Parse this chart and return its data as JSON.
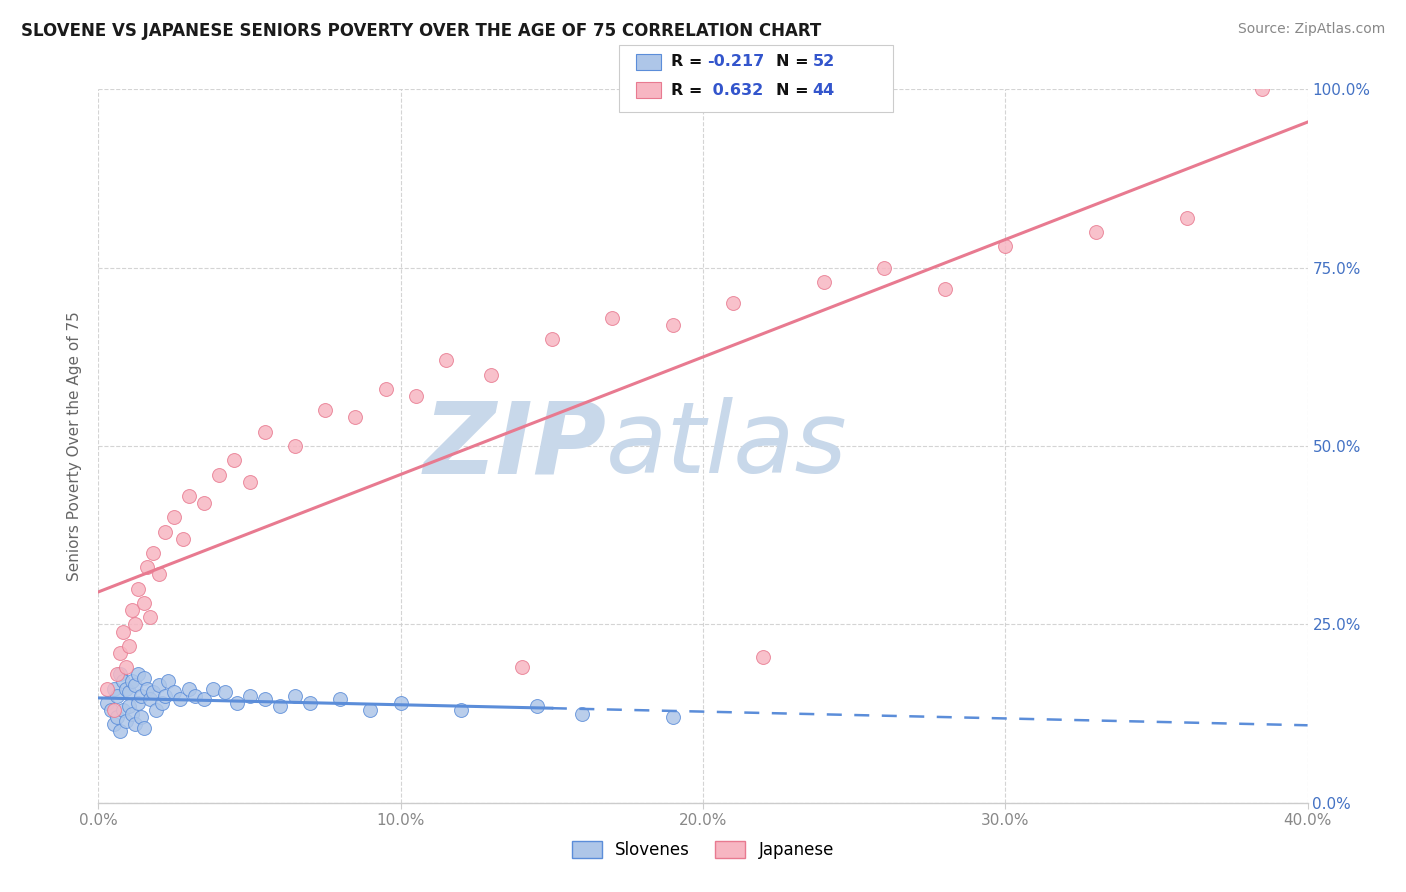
{
  "title": "SLOVENE VS JAPANESE SENIORS POVERTY OVER THE AGE OF 75 CORRELATION CHART",
  "source_text": "Source: ZipAtlas.com",
  "ylabel": "Seniors Poverty Over the Age of 75",
  "xlabel_vals": [
    0.0,
    10.0,
    20.0,
    30.0,
    40.0
  ],
  "ylabel_vals_right": [
    0.0,
    25.0,
    50.0,
    75.0,
    100.0
  ],
  "watermark_zip": "ZIP",
  "watermark_atlas": "atlas",
  "legend_line1": "R = -0.217   N = 52",
  "legend_line2": "R =  0.632   N = 44",
  "slovene_color": "#aec6e8",
  "japanese_color": "#f7b6c2",
  "slovene_line_color": "#5b8dd9",
  "japanese_line_color": "#e87a90",
  "slovene_scatter_x": [
    0.3,
    0.4,
    0.5,
    0.5,
    0.6,
    0.6,
    0.7,
    0.7,
    0.8,
    0.8,
    0.9,
    0.9,
    1.0,
    1.0,
    1.1,
    1.1,
    1.2,
    1.2,
    1.3,
    1.3,
    1.4,
    1.4,
    1.5,
    1.5,
    1.6,
    1.7,
    1.8,
    1.9,
    2.0,
    2.1,
    2.2,
    2.3,
    2.5,
    2.7,
    3.0,
    3.2,
    3.5,
    3.8,
    4.2,
    4.6,
    5.0,
    5.5,
    6.0,
    6.5,
    7.0,
    8.0,
    9.0,
    10.0,
    12.0,
    14.5,
    16.0,
    19.0
  ],
  "slovene_scatter_y": [
    14.0,
    13.0,
    16.0,
    11.0,
    15.0,
    12.0,
    18.0,
    10.0,
    17.0,
    13.0,
    16.0,
    11.5,
    15.5,
    13.5,
    17.0,
    12.5,
    16.5,
    11.0,
    18.0,
    14.0,
    15.0,
    12.0,
    17.5,
    10.5,
    16.0,
    14.5,
    15.5,
    13.0,
    16.5,
    14.0,
    15.0,
    17.0,
    15.5,
    14.5,
    16.0,
    15.0,
    14.5,
    16.0,
    15.5,
    14.0,
    15.0,
    14.5,
    13.5,
    15.0,
    14.0,
    14.5,
    13.0,
    14.0,
    13.0,
    13.5,
    12.5,
    12.0
  ],
  "japanese_scatter_x": [
    0.3,
    0.5,
    0.6,
    0.7,
    0.8,
    0.9,
    1.0,
    1.1,
    1.2,
    1.3,
    1.5,
    1.6,
    1.7,
    1.8,
    2.0,
    2.2,
    2.5,
    2.8,
    3.0,
    3.5,
    4.0,
    4.5,
    5.0,
    5.5,
    6.5,
    7.5,
    8.5,
    9.5,
    10.5,
    11.5,
    13.0,
    15.0,
    17.0,
    19.0,
    21.0,
    24.0,
    26.0,
    28.0,
    30.0,
    33.0,
    36.0,
    38.5,
    14.0,
    22.0
  ],
  "japanese_scatter_y": [
    16.0,
    13.0,
    18.0,
    21.0,
    24.0,
    19.0,
    22.0,
    27.0,
    25.0,
    30.0,
    28.0,
    33.0,
    26.0,
    35.0,
    32.0,
    38.0,
    40.0,
    37.0,
    43.0,
    42.0,
    46.0,
    48.0,
    45.0,
    52.0,
    50.0,
    55.0,
    54.0,
    58.0,
    57.0,
    62.0,
    60.0,
    65.0,
    68.0,
    67.0,
    70.0,
    73.0,
    75.0,
    72.0,
    78.0,
    80.0,
    82.0,
    100.0,
    19.0,
    20.5
  ],
  "xlim": [
    0.0,
    40.0
  ],
  "ylim": [
    0.0,
    100.0
  ],
  "bg_color": "#ffffff",
  "grid_color": "#d0d0d0",
  "watermark_color": "#c8d8ea",
  "title_fontsize": 12,
  "source_fontsize": 10,
  "tick_color": "#888888",
  "right_tick_color": "#4472c4"
}
